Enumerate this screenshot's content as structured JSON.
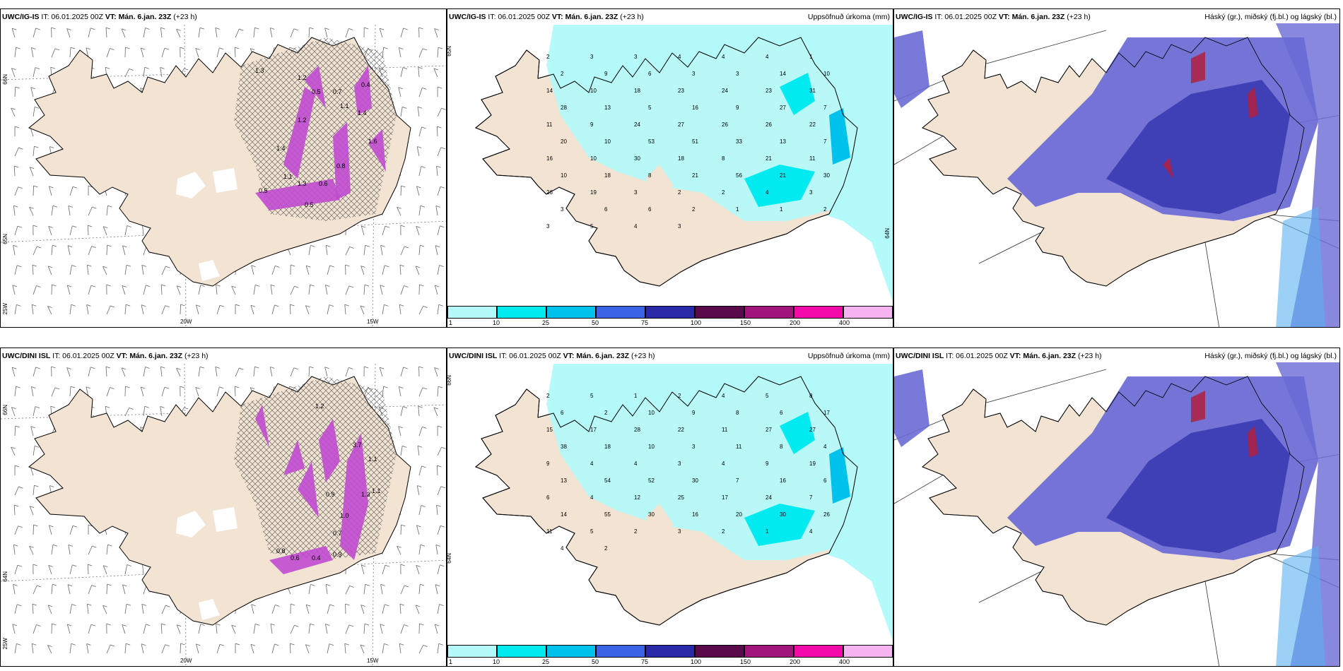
{
  "panels": {
    "p1": {
      "model": "UWC/IG-IS",
      "it": "IT: 06.01.2025 00Z",
      "vt_label": "VT:",
      "vt_value": "Mán. 6.jan. 23Z",
      "lead": "(+23 h)",
      "right_title": ""
    },
    "p2": {
      "model": "UWC/IG-IS",
      "it": "IT: 06.01.2025 00Z",
      "vt_label": "VT:",
      "vt_value": "Mán. 6.jan. 23Z",
      "lead": "(+23 h)",
      "right_title": "Uppsöfnuð úrkoma (mm)"
    },
    "p3": {
      "model": "UWC/IG-IS",
      "it": "IT: 06.01.2025 00Z",
      "vt_label": "VT:",
      "vt_value": "Mán. 6.jan. 23Z",
      "lead": "(+23 h)",
      "right_title": "Háský (gr.), miðský (fj.bl.) og lágský (bl.)"
    },
    "p4": {
      "model": "UWC/DINI ISL",
      "it": "IT: 06.01.2025 00Z",
      "vt_label": "VT:",
      "vt_value": "Mán. 6.jan. 23Z",
      "lead": "(+23 h)",
      "right_title": ""
    },
    "p5": {
      "model": "UWC/DINI ISL",
      "it": "IT: 06.01.2025 00Z",
      "vt_label": "VT:",
      "vt_value": "Mán. 6.jan. 23Z",
      "lead": "(+23 h)",
      "right_title": "Uppsöfnuð úrkoma (mm)"
    },
    "p6": {
      "model": "UWC/DINI ISL",
      "it": "IT: 06.01.2025 00Z",
      "vt_label": "VT:",
      "vt_value": "Mán. 6.jan. 23Z",
      "lead": "(+23 h)",
      "right_title": "Háský (gr.), miðský (fj.bl.) og lágský (bl.)"
    }
  },
  "axis_labels": {
    "lon_20": "20W",
    "lon_15": "15W",
    "lon_25": "25W",
    "lat_66": "66N",
    "lat_64": "64N",
    "lat_65": "65N"
  },
  "colorbar": {
    "labels": [
      "1",
      "10",
      "25",
      "50",
      "75",
      "100",
      "150",
      "200",
      "400"
    ],
    "colors": [
      "#b4fafa",
      "#00eaf0",
      "#00c2ec",
      "#3a64e6",
      "#2a2aa8",
      "#5a0a4a",
      "#a0167e",
      "#f20aaa",
      "#f6b4f0"
    ]
  },
  "colors": {
    "land": "#f2e3d2",
    "precip_light": "#b4fafa",
    "precip_mid": "#00eaf0",
    "precip_high": "#00c2ec",
    "cloud_high": "#6a6ad6",
    "cloud_mid": "#3c3cb4",
    "cloud_low": "#5ab0f0",
    "icing_magenta": "#c04ad0",
    "cloud_red": "#b02040"
  },
  "precip_values_top": [
    "2",
    "3",
    "3",
    "4",
    "4",
    "4",
    "1",
    "2",
    "9",
    "6",
    "3",
    "3",
    "14",
    "10",
    "14",
    "10",
    "18",
    "23",
    "24",
    "23",
    "31",
    "28",
    "13",
    "5",
    "16",
    "9",
    "27",
    "7",
    "11",
    "9",
    "24",
    "27",
    "26",
    "26",
    "22",
    "20",
    "10",
    "53",
    "51",
    "33",
    "13",
    "7",
    "16",
    "10",
    "30",
    "18",
    "8",
    "21",
    "11",
    "10",
    "18",
    "8",
    "21",
    "56",
    "21",
    "30",
    "26",
    "19",
    "3",
    "2",
    "2",
    "4",
    "3",
    "3",
    "6",
    "6",
    "2",
    "1",
    "1",
    "2",
    "3",
    "5",
    "4",
    "3"
  ],
  "precip_values_bottom": [
    "2",
    "5",
    "1",
    "2",
    "4",
    "5",
    "8",
    "6",
    "2",
    "10",
    "9",
    "8",
    "6",
    "17",
    "15",
    "17",
    "28",
    "22",
    "11",
    "27",
    "27",
    "38",
    "18",
    "10",
    "3",
    "11",
    "8",
    "4",
    "9",
    "4",
    "4",
    "3",
    "4",
    "9",
    "19",
    "13",
    "54",
    "52",
    "30",
    "7",
    "16",
    "6",
    "6",
    "4",
    "12",
    "25",
    "17",
    "24",
    "7",
    "14",
    "55",
    "30",
    "16",
    "20",
    "30",
    "26",
    "11",
    "5",
    "2",
    "3",
    "2",
    "1",
    "4",
    "4",
    "2"
  ],
  "icing_values_top": [
    "1.3",
    "1.2",
    "0.5",
    "0.7",
    "1.2",
    "1.4",
    "1.1",
    "0.5",
    "1.3",
    "0.6",
    "0.8",
    "0.4",
    "1.6",
    "1.4",
    "1.1",
    "0.5"
  ],
  "icing_values_bottom": [
    "1.2",
    "1.1",
    "3.7",
    "1.1",
    "1.3",
    "0.9",
    "1.0",
    "0.7",
    "0.6",
    "0.4",
    "0.8",
    "0.9"
  ]
}
